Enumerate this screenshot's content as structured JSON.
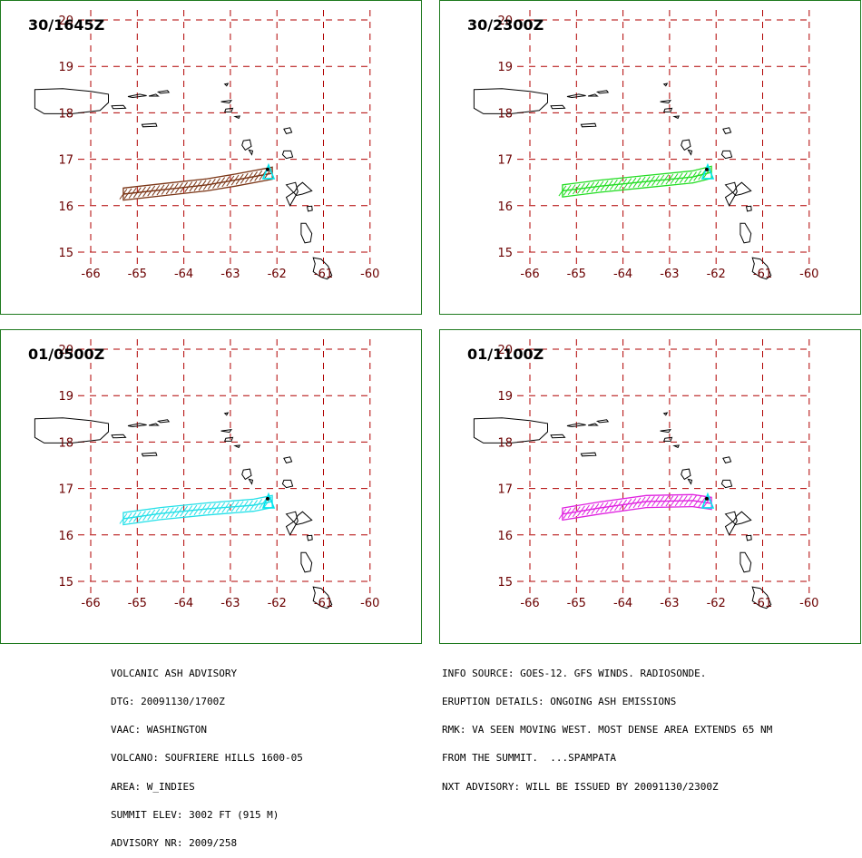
{
  "map": {
    "lon_ticks": [
      "-66",
      "-65",
      "-64",
      "-63",
      "-62",
      "-61",
      "-60"
    ],
    "lat_ticks": [
      "20",
      "19",
      "18",
      "17",
      "16",
      "15"
    ],
    "lon_range": [
      -66.5,
      -59.5
    ],
    "lat_range": [
      14.5,
      20.3
    ],
    "grid": "dashed",
    "grid_color": "#b00000",
    "tick_color": "#6b0000",
    "coast_color": "#000000",
    "vent_color": "#00e5ee",
    "summit": {
      "lon": -62.18,
      "lat": 16.72
    }
  },
  "panels": [
    {
      "time": "30/1645Z",
      "color": "#7a3414",
      "axis": [
        [
          -65.3,
          16.25
        ],
        [
          -64.4,
          16.35
        ],
        [
          -63.5,
          16.45
        ],
        [
          -62.9,
          16.55
        ],
        [
          -62.1,
          16.7
        ]
      ],
      "halfwidth": 0.13
    },
    {
      "time": "30/2300Z",
      "color": "#22dd22",
      "axis": [
        [
          -65.3,
          16.32
        ],
        [
          -64.5,
          16.42
        ],
        [
          -63.5,
          16.52
        ],
        [
          -62.5,
          16.62
        ],
        [
          -62.1,
          16.72
        ]
      ],
      "halfwidth": 0.13
    },
    {
      "time": "01/0500Z",
      "color": "#22e0e8",
      "axis": [
        [
          -65.3,
          16.35
        ],
        [
          -64.5,
          16.46
        ],
        [
          -63.5,
          16.56
        ],
        [
          -62.5,
          16.64
        ],
        [
          -62.1,
          16.72
        ]
      ],
      "halfwidth": 0.13
    },
    {
      "time": "01/1100Z",
      "color": "#e020e0",
      "axis": [
        [
          -65.3,
          16.45
        ],
        [
          -64.5,
          16.58
        ],
        [
          -63.5,
          16.72
        ],
        [
          -62.5,
          16.74
        ],
        [
          -62.1,
          16.68
        ]
      ],
      "halfwidth": 0.13
    }
  ],
  "advisory_left": [
    "VOLCANIC ASH ADVISORY",
    "DTG: 20091130/1700Z",
    "VAAC: WASHINGTON",
    "VOLCANO: SOUFRIERE HILLS 1600-05",
    "AREA: W_INDIES",
    "SUMMIT ELEV: 3002 FT (915 M)",
    "ADVISORY NR: 2009/258"
  ],
  "advisory_right": [
    "INFO SOURCE: GOES-12. GFS WINDS. RADIOSONDE.",
    "ERUPTION DETAILS: ONGOING ASH EMISSIONS",
    "RMK: VA SEEN MOVING WEST. MOST DENSE AREA EXTENDS 65 NM",
    "FROM THE SUMMIT.  ...SPAMPATA",
    "NXT ADVISORY: WILL BE ISSUED BY 20091130/2300Z"
  ]
}
